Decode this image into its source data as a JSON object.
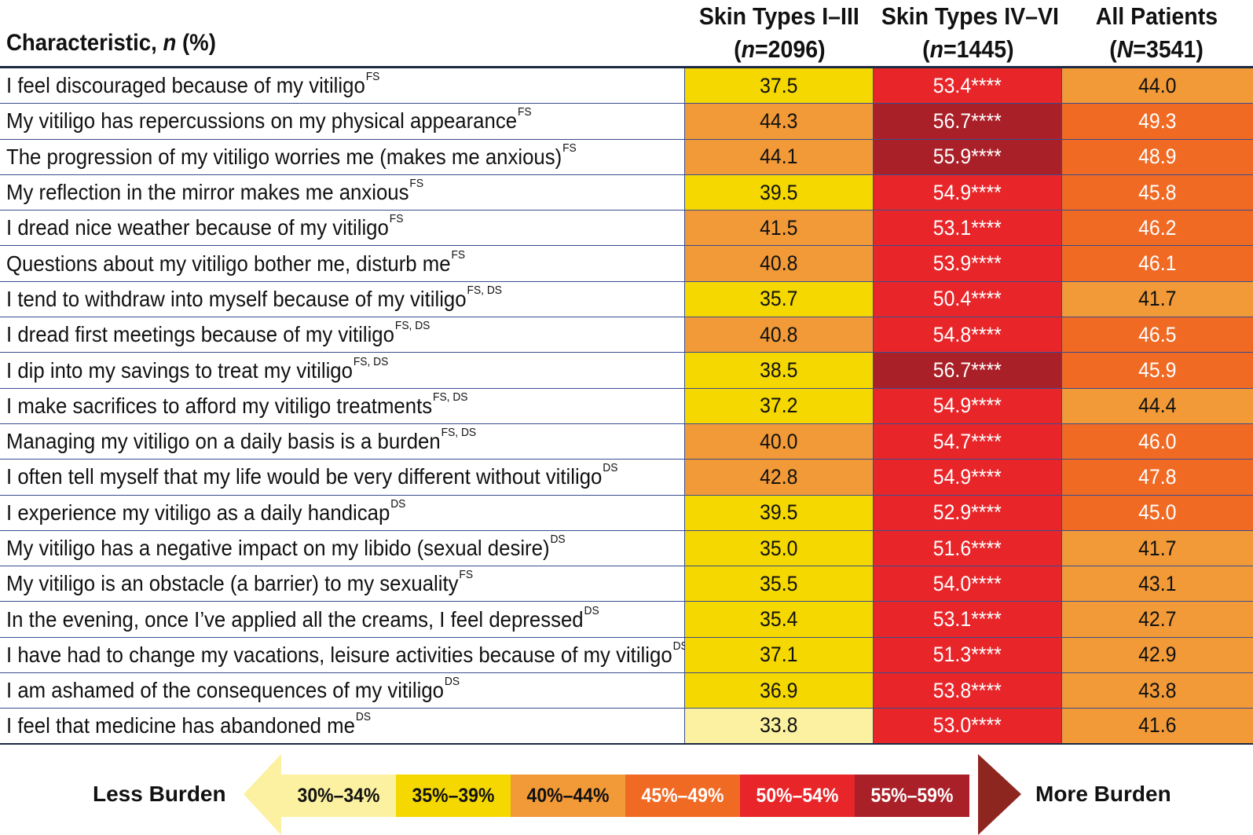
{
  "header": {
    "characteristic_main": "Characteristic, ",
    "characteristic_italic": "n",
    "characteristic_tail": " (%)",
    "columns": [
      {
        "line1": "Skin Types I–III",
        "n_italic": "n",
        "n_rest": "=2096)"
      },
      {
        "line1": "Skin Types IV–VI",
        "n_italic": "n",
        "n_rest": "=1445)"
      },
      {
        "line1": "All Patients",
        "n_italic": "N",
        "n_rest": "=3541)"
      }
    ],
    "open_paren": "("
  },
  "colors": {
    "bin_30_34": "#fbf1a0",
    "bin_35_39": "#f5d800",
    "bin_40_44": "#f29a38",
    "bin_45_49": "#f06a24",
    "bin_50_54": "#e8262a",
    "bin_55_59": "#aa2028",
    "rule": "#1c2a44",
    "row_border": "#3a4d8f"
  },
  "rows": [
    {
      "label": "I feel discouraged because of my vitiligo",
      "sup": "FS",
      "v1": "37.5",
      "v2": "53.4****",
      "v3": "44.0",
      "b1": "bin_35_39",
      "b2": "bin_50_54",
      "b3": "bin_40_44"
    },
    {
      "label": "My vitiligo has repercussions on my physical appearance",
      "sup": "FS",
      "v1": "44.3",
      "v2": "56.7****",
      "v3": "49.3",
      "b1": "bin_40_44",
      "b2": "bin_55_59",
      "b3": "bin_45_49"
    },
    {
      "label": "The progression of my vitiligo worries me (makes me anxious)",
      "sup": "FS",
      "v1": "44.1",
      "v2": "55.9****",
      "v3": "48.9",
      "b1": "bin_40_44",
      "b2": "bin_55_59",
      "b3": "bin_45_49"
    },
    {
      "label": "My reflection in the mirror makes me anxious",
      "sup": "FS",
      "v1": "39.5",
      "v2": "54.9****",
      "v3": "45.8",
      "b1": "bin_35_39",
      "b2": "bin_50_54",
      "b3": "bin_45_49"
    },
    {
      "label": "I dread nice weather because of my vitiligo",
      "sup": "FS",
      "v1": "41.5",
      "v2": "53.1****",
      "v3": "46.2",
      "b1": "bin_40_44",
      "b2": "bin_50_54",
      "b3": "bin_45_49"
    },
    {
      "label": "Questions about my vitiligo bother me, disturb me",
      "sup": "FS",
      "v1": "40.8",
      "v2": "53.9****",
      "v3": "46.1",
      "b1": "bin_40_44",
      "b2": "bin_50_54",
      "b3": "bin_45_49"
    },
    {
      "label": "I tend to withdraw into myself because of my vitiligo",
      "sup": "FS, DS",
      "v1": "35.7",
      "v2": "50.4****",
      "v3": "41.7",
      "b1": "bin_35_39",
      "b2": "bin_50_54",
      "b3": "bin_40_44"
    },
    {
      "label": "I dread first meetings because of my vitiligo",
      "sup": "FS, DS",
      "v1": "40.8",
      "v2": "54.8****",
      "v3": "46.5",
      "b1": "bin_40_44",
      "b2": "bin_50_54",
      "b3": "bin_45_49"
    },
    {
      "label": "I dip into my savings to treat my vitiligo",
      "sup": "FS, DS",
      "v1": "38.5",
      "v2": "56.7****",
      "v3": "45.9",
      "b1": "bin_35_39",
      "b2": "bin_55_59",
      "b3": "bin_45_49"
    },
    {
      "label": "I make sacrifices to afford my vitiligo treatments",
      "sup": "FS, DS",
      "v1": "37.2",
      "v2": "54.9****",
      "v3": "44.4",
      "b1": "bin_35_39",
      "b2": "bin_50_54",
      "b3": "bin_40_44"
    },
    {
      "label": "Managing my vitiligo on a daily basis is a burden",
      "sup": "FS, DS",
      "v1": "40.0",
      "v2": "54.7****",
      "v3": "46.0",
      "b1": "bin_40_44",
      "b2": "bin_50_54",
      "b3": "bin_45_49"
    },
    {
      "label": "I often tell myself that my life would be very different without vitiligo",
      "sup": "DS",
      "v1": "42.8",
      "v2": "54.9****",
      "v3": "47.8",
      "b1": "bin_40_44",
      "b2": "bin_50_54",
      "b3": "bin_45_49"
    },
    {
      "label": "I experience my vitiligo as a daily handicap",
      "sup": "DS",
      "v1": "39.5",
      "v2": "52.9****",
      "v3": "45.0",
      "b1": "bin_35_39",
      "b2": "bin_50_54",
      "b3": "bin_45_49"
    },
    {
      "label": "My vitiligo has a negative impact on my libido (sexual desire)",
      "sup": "DS",
      "v1": "35.0",
      "v2": "51.6****",
      "v3": "41.7",
      "b1": "bin_35_39",
      "b2": "bin_50_54",
      "b3": "bin_40_44"
    },
    {
      "label": "My vitiligo is an obstacle (a barrier) to my sexuality",
      "sup": "FS",
      "v1": "35.5",
      "v2": "54.0****",
      "v3": "43.1",
      "b1": "bin_35_39",
      "b2": "bin_50_54",
      "b3": "bin_40_44"
    },
    {
      "label": "In the evening, once I’ve applied all the creams, I feel depressed",
      "sup": "DS",
      "v1": "35.4",
      "v2": "53.1****",
      "v3": "42.7",
      "b1": "bin_35_39",
      "b2": "bin_50_54",
      "b3": "bin_40_44"
    },
    {
      "label": "I have had to change my vacations, leisure activities because of my vitiligo",
      "sup": "DS",
      "v1": "37.1",
      "v2": "51.3****",
      "v3": "42.9",
      "b1": "bin_35_39",
      "b2": "bin_50_54",
      "b3": "bin_40_44"
    },
    {
      "label": "I am ashamed of the consequences of my vitiligo",
      "sup": "DS",
      "v1": "36.9",
      "v2": "53.8****",
      "v3": "43.8",
      "b1": "bin_35_39",
      "b2": "bin_50_54",
      "b3": "bin_40_44"
    },
    {
      "label": "I feel that medicine has abandoned me",
      "sup": "DS",
      "v1": "33.8",
      "v2": "53.0****",
      "v3": "41.6",
      "b1": "bin_30_34",
      "b2": "bin_50_54",
      "b3": "bin_40_44"
    }
  ],
  "legend": {
    "less": "Less Burden",
    "more": "More Burden",
    "bins": [
      {
        "label": "30%–34%",
        "color": "bin_30_34",
        "text": "dark"
      },
      {
        "label": "35%–39%",
        "color": "bin_35_39",
        "text": "dark"
      },
      {
        "label": "40%–44%",
        "color": "bin_40_44",
        "text": "dark"
      },
      {
        "label": "45%–49%",
        "color": "bin_45_49",
        "text": "light"
      },
      {
        "label": "50%–54%",
        "color": "bin_50_54",
        "text": "light"
      },
      {
        "label": "55%–59%",
        "color": "bin_55_59",
        "text": "light"
      }
    ]
  }
}
